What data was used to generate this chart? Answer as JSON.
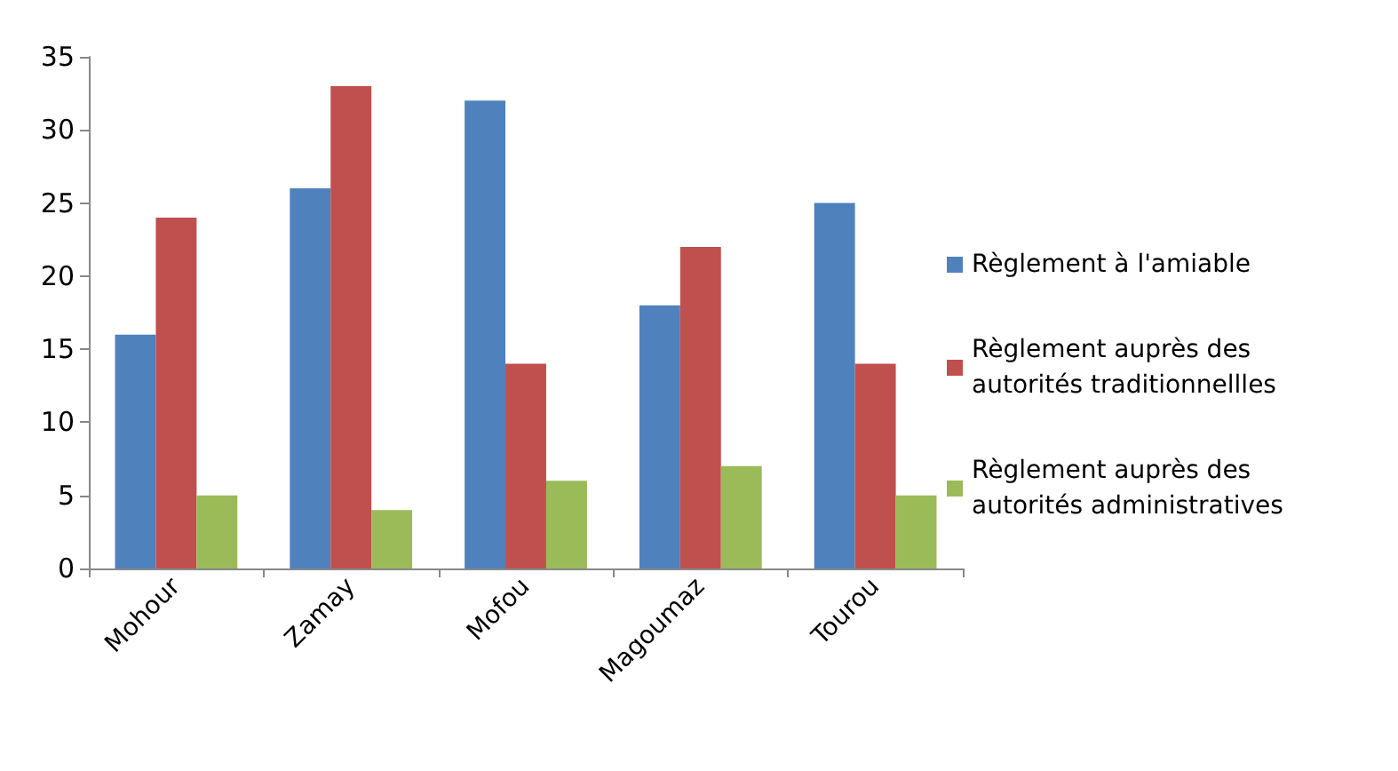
{
  "chart_data": {
    "type": "bar",
    "categories": [
      "Mohour",
      "Zamay",
      "Mofou",
      "Magoumaz",
      "Tourou"
    ],
    "series": [
      {
        "name": "Règlement à l'amiable",
        "color": "#4f81bd",
        "values": [
          16,
          26,
          32,
          18,
          25
        ]
      },
      {
        "name": "Règlement auprès des autorités traditionnellles",
        "color": "#c0504d",
        "values": [
          24,
          33,
          14,
          22,
          14
        ]
      },
      {
        "name": "Règlement auprès des autorités administratives",
        "color": "#9bbb59",
        "values": [
          5,
          4,
          6,
          7,
          5
        ]
      }
    ],
    "ylim": [
      0,
      35
    ],
    "yticks": [
      0,
      5,
      10,
      15,
      20,
      25,
      30,
      35
    ],
    "grid": false,
    "legend": "right"
  }
}
